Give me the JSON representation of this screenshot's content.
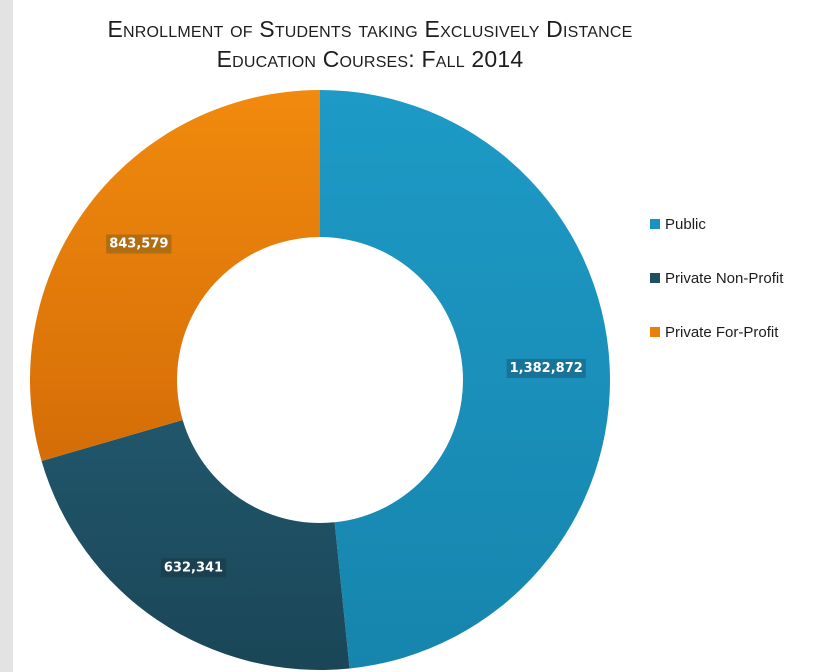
{
  "title": {
    "line1": "Enrollment of Students taking Exclusively Distance",
    "line2": "Education Courses: Fall 2014"
  },
  "chart_data": {
    "type": "pie",
    "donut": true,
    "title": "Enrollment of Students taking Exclusively Distance Education Courses: Fall 2014",
    "categories": [
      "Public",
      "Private Non-Profit",
      "Private For-Profit"
    ],
    "values": [
      1382872,
      632341,
      843579
    ],
    "value_labels": [
      "1,382,872",
      "632,341",
      "843,579"
    ],
    "colors": [
      "#1a94bf",
      "#1e4f62",
      "#e8800a"
    ],
    "legend_position": "right"
  }
}
